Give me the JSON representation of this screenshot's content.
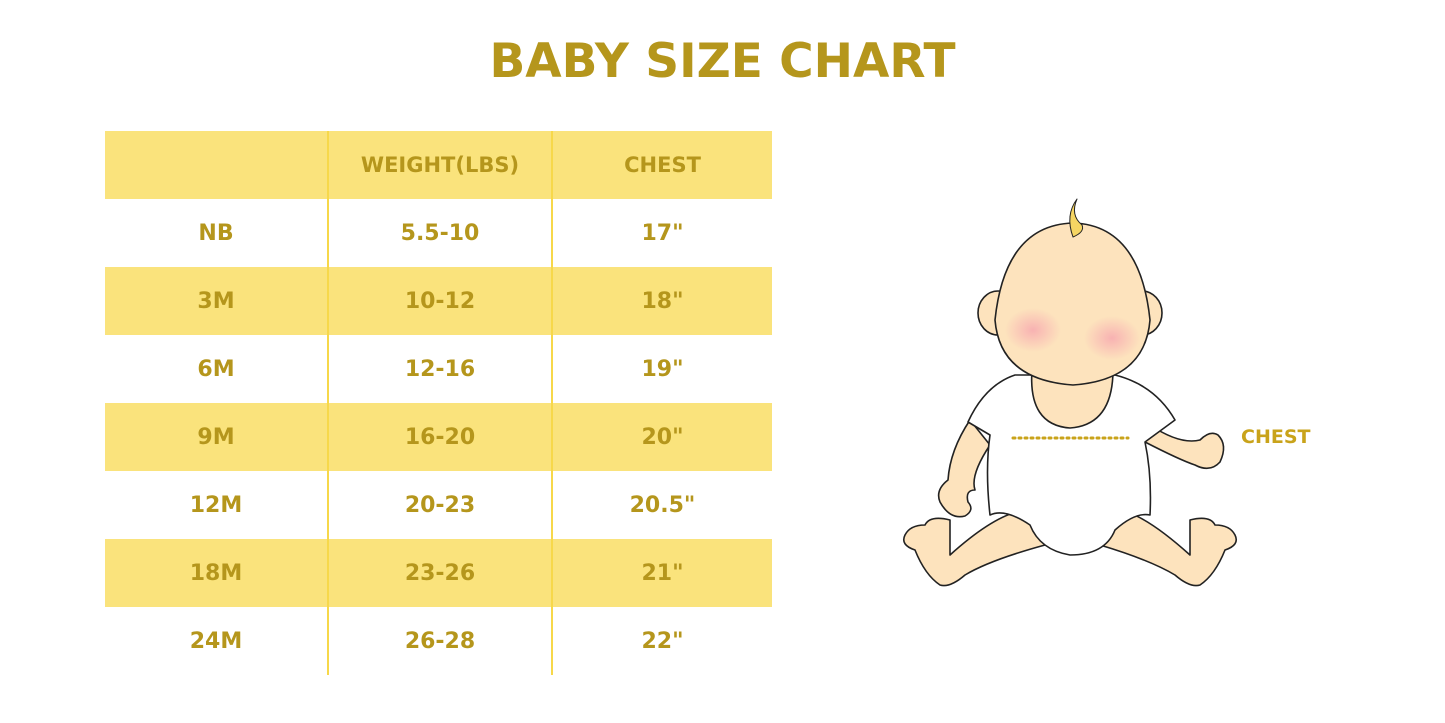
{
  "title": "BABY SIZE CHART",
  "table": {
    "headers": [
      "",
      "WEIGHT(LBS)",
      "CHEST"
    ],
    "rows": [
      [
        "NB",
        "5.5-10",
        "17\""
      ],
      [
        "3M",
        "10-12",
        "18\""
      ],
      [
        "6M",
        "12-16",
        "19\""
      ],
      [
        "9M",
        "16-20",
        "20\""
      ],
      [
        "12M",
        "20-23",
        "20.5\""
      ],
      [
        "18M",
        "23-26",
        "21\""
      ],
      [
        "24M",
        "26-28",
        "22\""
      ]
    ]
  },
  "illustration": {
    "chest_label": "CHEST"
  },
  "colors": {
    "text": "#b5961c",
    "row_highlight": "#fae37c",
    "divider": "#f7d84a",
    "skin": "#fde3bd"
  }
}
